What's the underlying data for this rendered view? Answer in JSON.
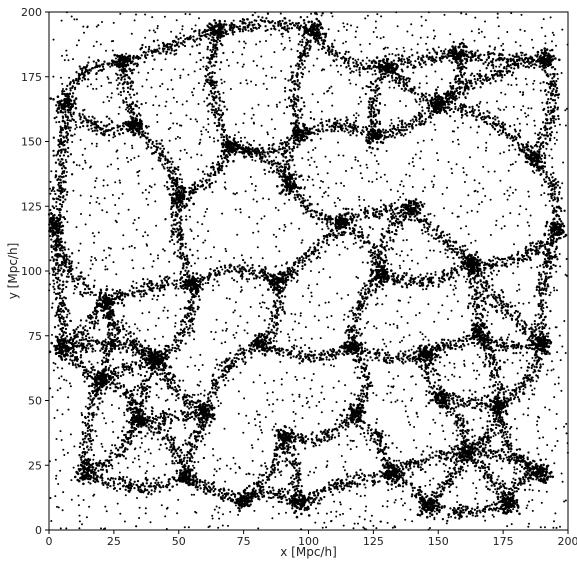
{
  "chart_data": {
    "type": "scatter",
    "xlabel": "x [Mpc/h]",
    "ylabel": "y [Mpc/h]",
    "xlim": [
      0,
      200
    ],
    "ylim": [
      0,
      200
    ],
    "x_ticks": [
      "0",
      "25",
      "50",
      "75",
      "100",
      "125",
      "150",
      "175",
      "200"
    ],
    "y_ticks": [
      "0",
      "25",
      "50",
      "75",
      "100",
      "125",
      "150",
      "175",
      "200"
    ],
    "grid": false,
    "point_color": "#000000",
    "cluster_points": [
      {
        "x": 28,
        "y": 181
      },
      {
        "x": 65,
        "y": 193
      },
      {
        "x": 102,
        "y": 193
      },
      {
        "x": 130,
        "y": 179
      },
      {
        "x": 158,
        "y": 184
      },
      {
        "x": 192,
        "y": 182
      },
      {
        "x": 6,
        "y": 165
      },
      {
        "x": 33,
        "y": 156
      },
      {
        "x": 70,
        "y": 148
      },
      {
        "x": 97,
        "y": 153
      },
      {
        "x": 126,
        "y": 152
      },
      {
        "x": 150,
        "y": 164
      },
      {
        "x": 187,
        "y": 143
      },
      {
        "x": 2,
        "y": 118
      },
      {
        "x": 50,
        "y": 129
      },
      {
        "x": 93,
        "y": 133
      },
      {
        "x": 113,
        "y": 119
      },
      {
        "x": 140,
        "y": 124
      },
      {
        "x": 163,
        "y": 103
      },
      {
        "x": 196,
        "y": 116
      },
      {
        "x": 22,
        "y": 88
      },
      {
        "x": 55,
        "y": 95
      },
      {
        "x": 88,
        "y": 96
      },
      {
        "x": 128,
        "y": 98
      },
      {
        "x": 166,
        "y": 76
      },
      {
        "x": 5,
        "y": 70
      },
      {
        "x": 42,
        "y": 66
      },
      {
        "x": 82,
        "y": 72
      },
      {
        "x": 117,
        "y": 71
      },
      {
        "x": 145,
        "y": 68
      },
      {
        "x": 190,
        "y": 72
      },
      {
        "x": 20,
        "y": 58
      },
      {
        "x": 34,
        "y": 42
      },
      {
        "x": 60,
        "y": 45
      },
      {
        "x": 91,
        "y": 36
      },
      {
        "x": 118,
        "y": 45
      },
      {
        "x": 151,
        "y": 51
      },
      {
        "x": 173,
        "y": 48
      },
      {
        "x": 14,
        "y": 22
      },
      {
        "x": 53,
        "y": 20
      },
      {
        "x": 97,
        "y": 10
      },
      {
        "x": 132,
        "y": 22
      },
      {
        "x": 161,
        "y": 30
      },
      {
        "x": 190,
        "y": 22
      },
      {
        "x": 75,
        "y": 11
      },
      {
        "x": 146,
        "y": 9
      },
      {
        "x": 177,
        "y": 10
      }
    ]
  }
}
